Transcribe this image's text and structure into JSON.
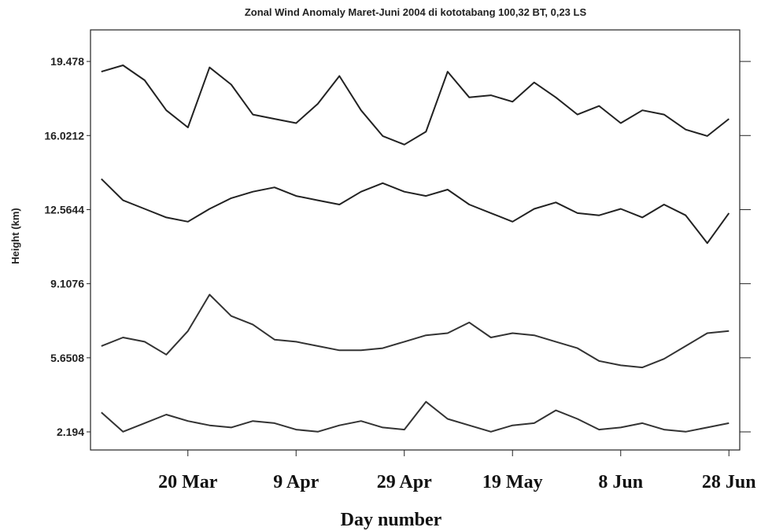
{
  "chart_data": {
    "type": "line",
    "title": "Zonal Wind Anomaly Maret-Juni 2004 di kototabang 100,32 BT, 0,23 LS",
    "x_label": "Day number",
    "y_label": "Height (km)",
    "xlim": [
      62,
      182
    ],
    "ylim": [
      1.35,
      20.95
    ],
    "xticks": [
      {
        "value": 80,
        "label": "20 Mar"
      },
      {
        "value": 100,
        "label": "9 Apr"
      },
      {
        "value": 120,
        "label": "29 Apr"
      },
      {
        "value": 140,
        "label": "19 May"
      },
      {
        "value": 160,
        "label": "8 Jun"
      },
      {
        "value": 180,
        "label": "28 Jun"
      }
    ],
    "yticks": [
      2.194,
      5.6508,
      9.1076,
      12.5644,
      16.0212,
      19.478
    ],
    "x": [
      64,
      68,
      72,
      76,
      80,
      84,
      88,
      92,
      96,
      100,
      104,
      108,
      112,
      116,
      120,
      124,
      128,
      132,
      136,
      140,
      144,
      148,
      152,
      156,
      160,
      164,
      168,
      172,
      176,
      180
    ],
    "series": [
      {
        "color": "#222222",
        "values": [
          19.0,
          19.3,
          18.6,
          17.2,
          16.4,
          19.2,
          18.4,
          17.0,
          16.8,
          16.6,
          17.5,
          18.8,
          17.2,
          16.0,
          15.6,
          16.2,
          19.0,
          17.8,
          17.9,
          17.6,
          18.5,
          17.8,
          17.0,
          17.4,
          16.6,
          17.2,
          17.0,
          16.3,
          16.0,
          16.8
        ]
      },
      {
        "color": "#222222",
        "values": [
          14.0,
          13.0,
          12.6,
          12.2,
          12.0,
          12.6,
          13.1,
          13.4,
          13.6,
          13.2,
          13.0,
          12.8,
          13.4,
          13.8,
          13.4,
          13.2,
          13.5,
          12.8,
          12.4,
          12.0,
          12.6,
          12.9,
          12.4,
          12.3,
          12.6,
          12.2,
          12.8,
          12.3,
          11.0,
          12.4
        ]
      },
      {
        "color": "#333333",
        "values": [
          6.2,
          6.6,
          6.4,
          5.8,
          6.9,
          8.6,
          7.6,
          7.2,
          6.5,
          6.4,
          6.2,
          6.0,
          6.0,
          6.1,
          6.4,
          6.7,
          6.8,
          7.3,
          6.6,
          6.8,
          6.7,
          6.4,
          6.1,
          5.5,
          5.3,
          5.2,
          5.6,
          6.2,
          6.8,
          6.9
        ]
      },
      {
        "color": "#333333",
        "values": [
          3.1,
          2.2,
          2.6,
          3.0,
          2.7,
          2.5,
          2.4,
          2.7,
          2.6,
          2.3,
          2.2,
          2.5,
          2.7,
          2.4,
          2.3,
          3.6,
          2.8,
          2.5,
          2.2,
          2.5,
          2.6,
          3.2,
          2.8,
          2.3,
          2.4,
          2.6,
          2.3,
          2.2,
          2.4,
          2.6
        ]
      }
    ]
  }
}
